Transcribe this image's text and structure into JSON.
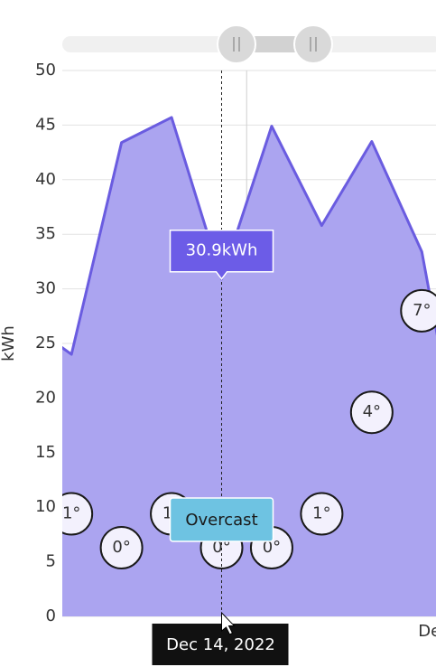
{
  "chart_data": {
    "type": "area",
    "y_label": "kWh",
    "x": [
      -3,
      3,
      9,
      15,
      21,
      27,
      33,
      39,
      45,
      51
    ],
    "xlim": [
      1.9,
      46.7
    ],
    "xticks": [
      {
        "value": 24,
        "label": "Dec 15"
      },
      {
        "value": 48,
        "label": "Dec 16"
      }
    ],
    "ylim": [
      0,
      50
    ],
    "yticks": [
      0,
      5,
      10,
      15,
      20,
      25,
      30,
      35,
      40,
      45,
      50
    ],
    "y2lim": [
      -2.03,
      14.1
    ],
    "grid": true,
    "series": [
      {
        "color": "#6a5ce0",
        "fill": "#aba4f0",
        "values": [
          27.3,
          24.0,
          43.4,
          45.7,
          30.9,
          44.9,
          35.8,
          43.5,
          33.4,
          8.6
        ]
      },
      {
        "axis": "y2",
        "type": "bubble",
        "color": "#1a1a1a",
        "x": [
          3,
          9,
          15,
          21,
          27,
          33,
          39,
          45
        ],
        "values": [
          1,
          0,
          1,
          0,
          0,
          1,
          4,
          7
        ],
        "value_labels": [
          "1°",
          "0°",
          "1°",
          "0°",
          "0°",
          "1°",
          "4°",
          "7°"
        ]
      }
    ],
    "tooltip": {
      "x": 21,
      "value": 30.9,
      "label": "30.9kWh",
      "weather": "Overcast",
      "date": "Dec 14, 2022"
    }
  }
}
